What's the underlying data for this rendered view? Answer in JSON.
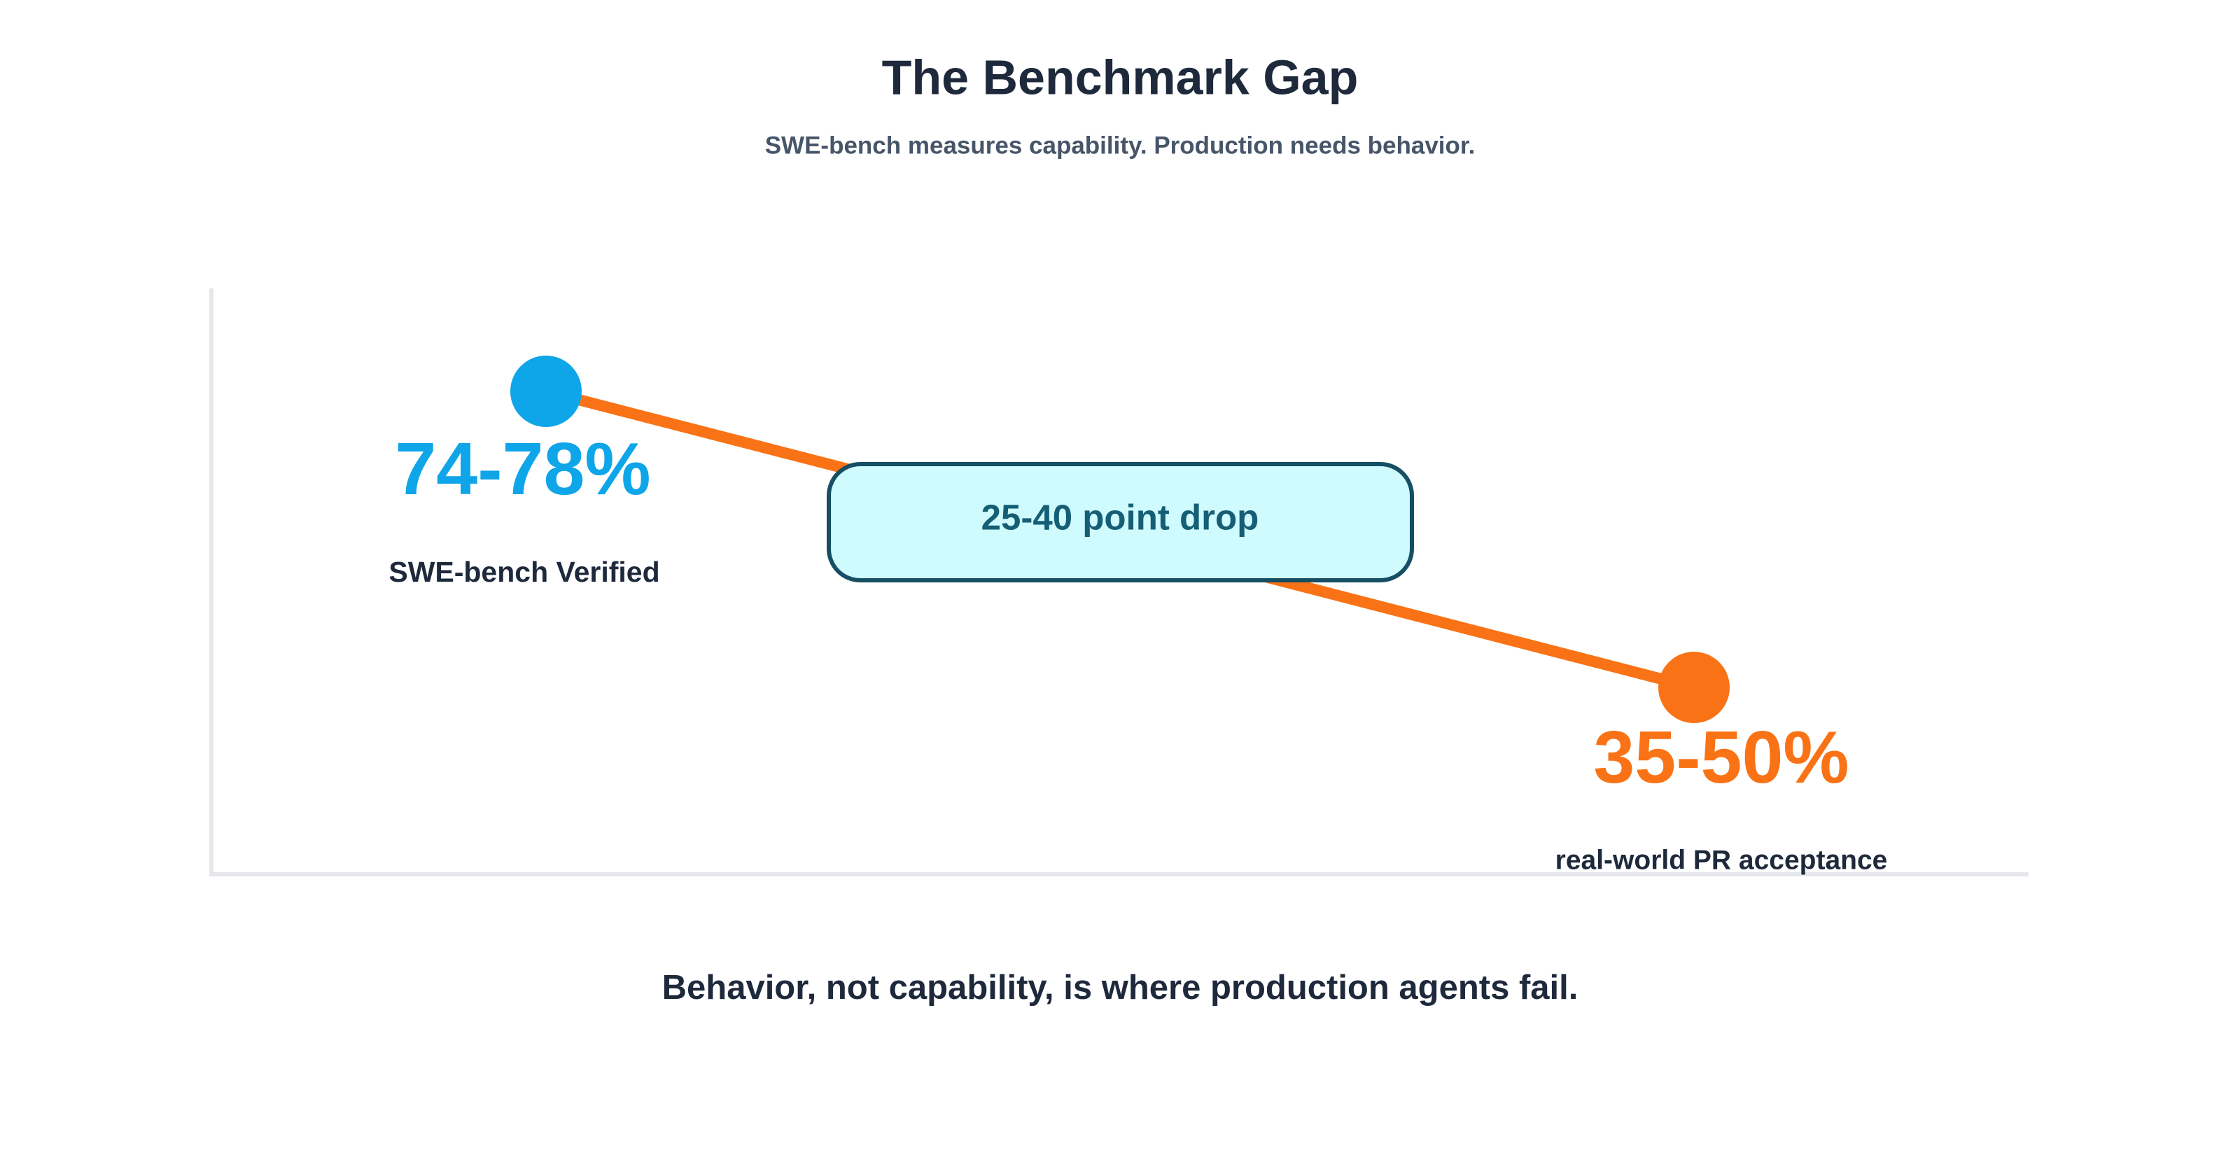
{
  "header": {
    "title": "The Benchmark Gap",
    "subtitle": "SWE-bench measures capability. Production needs behavior."
  },
  "points": [
    {
      "value_label": "74-78%",
      "label": "SWE-bench Verified"
    },
    {
      "value_label": "35-50%",
      "label": "real-world PR acceptance"
    }
  ],
  "callout": "25-40 point drop",
  "footer": "Behavior, not capability, is where production agents fail."
}
